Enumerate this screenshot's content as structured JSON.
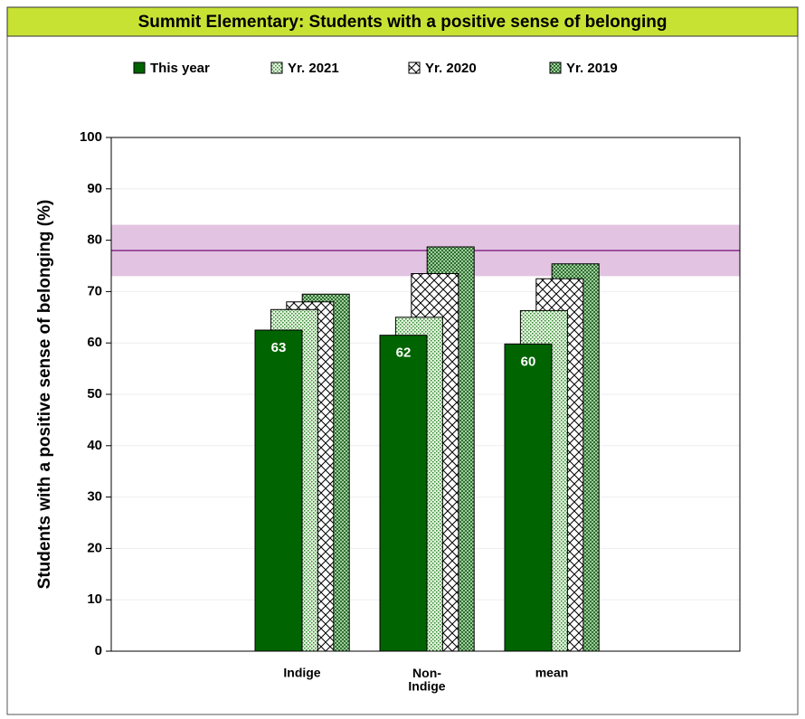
{
  "chart_data": {
    "type": "bar",
    "title": "Summit Elementary: Students with a positive sense of belonging",
    "ylabel": "Students with a positive sense of belonging (%)",
    "categories": [
      "Indige",
      "Non-\nIndige",
      "mean"
    ],
    "series": [
      {
        "name": "This year",
        "color": "#006400",
        "values": [
          62.5,
          61.5,
          59.8
        ],
        "value_labels": [
          "63",
          "62",
          "60"
        ]
      },
      {
        "name": "Yr. 2021",
        "color": "#c8e8c0",
        "values": [
          66.5,
          65,
          66.3
        ]
      },
      {
        "name": "Yr. 2020",
        "color": "#ffffff",
        "values": [
          68,
          73.5,
          72.5
        ]
      },
      {
        "name": "Yr. 2019",
        "color": "#6aa86a",
        "values": [
          69.5,
          78.7,
          75.4
        ]
      }
    ],
    "ylim": [
      0,
      100
    ],
    "yticks": [
      0,
      10,
      20,
      30,
      40,
      50,
      60,
      70,
      80,
      90,
      100
    ],
    "grid": true,
    "reference_band": [
      73,
      83
    ],
    "reference_line": 78
  }
}
